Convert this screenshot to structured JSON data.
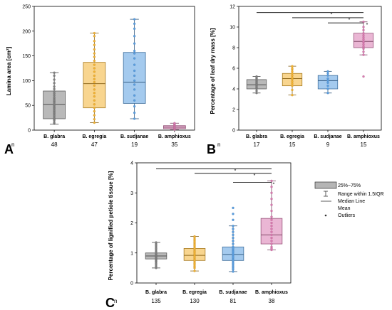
{
  "chart_data": [
    {
      "panel": "A",
      "type": "box",
      "ylabel": "Lamina area [cm²]",
      "ylim": [
        0,
        250
      ],
      "yticks": [
        0,
        50,
        100,
        150,
        200,
        250
      ],
      "categories": [
        "B. glabra",
        "B. egregia",
        "B. sudjanae",
        "B. amphioxus"
      ],
      "n_label": "n",
      "n": [
        "48",
        "47",
        "19",
        "35"
      ],
      "colors": [
        "#808080",
        "#f2b233",
        "#5a9ee0",
        "#d97bb0"
      ],
      "boxes": [
        {
          "whisker_low": 12,
          "q1": 23,
          "median": 52,
          "mean": 52,
          "q3": 79,
          "whisker_high": 116,
          "points": [
            13,
            16,
            20,
            22,
            24,
            27,
            30,
            33,
            35,
            38,
            40,
            43,
            45,
            47,
            50,
            52,
            55,
            58,
            60,
            63,
            66,
            70,
            74,
            78,
            83,
            88,
            95,
            102,
            110,
            116
          ]
        },
        {
          "whisker_low": 15,
          "q1": 45,
          "median": 94,
          "mean": 92,
          "q3": 137,
          "whisker_high": 196,
          "points": [
            15,
            22,
            30,
            38,
            45,
            52,
            60,
            68,
            75,
            82,
            90,
            97,
            103,
            110,
            118,
            125,
            132,
            140,
            148,
            155,
            163,
            172,
            180,
            190,
            196
          ]
        },
        {
          "whisker_low": 23,
          "q1": 54,
          "median": 97,
          "mean": 102,
          "q3": 157,
          "whisker_high": 224,
          "points": [
            23,
            35,
            48,
            60,
            70,
            82,
            92,
            100,
            110,
            120,
            132,
            145,
            155,
            160,
            175,
            190,
            205,
            215,
            224
          ]
        },
        {
          "whisker_low": 1,
          "q1": 3,
          "median": 6,
          "mean": 6,
          "q3": 9,
          "whisker_high": 14,
          "points": [
            1,
            2,
            3,
            4,
            5,
            6,
            7,
            8,
            9,
            10,
            11,
            12,
            13,
            14
          ]
        }
      ]
    },
    {
      "panel": "B",
      "type": "box",
      "ylabel": "Percentage of leaf dry mass [%]",
      "ylim": [
        0,
        12
      ],
      "yticks": [
        0,
        2,
        4,
        6,
        8,
        10,
        12
      ],
      "categories": [
        "B. glabra",
        "B. egregia",
        "B. sudjanae",
        "B. amphioxus"
      ],
      "n_label": "n",
      "n": [
        "17",
        "15",
        "9",
        "15"
      ],
      "colors": [
        "#808080",
        "#f2b233",
        "#5a9ee0",
        "#d97bb0"
      ],
      "boxes": [
        {
          "whisker_low": 3.6,
          "q1": 4.0,
          "median": 4.4,
          "mean": 4.4,
          "q3": 4.9,
          "whisker_high": 5.2,
          "points": [
            3.6,
            3.8,
            4.0,
            4.1,
            4.2,
            4.3,
            4.4,
            4.5,
            4.6,
            4.7,
            4.8,
            4.9,
            5.0,
            5.1,
            5.2
          ]
        },
        {
          "whisker_low": 3.4,
          "q1": 4.3,
          "median": 5.0,
          "mean": 4.9,
          "q3": 5.5,
          "whisker_high": 6.2,
          "points": [
            3.4,
            3.9,
            4.3,
            4.5,
            4.7,
            4.9,
            5.0,
            5.1,
            5.3,
            5.5,
            5.7,
            5.9,
            6.0,
            6.2
          ]
        },
        {
          "whisker_low": 3.6,
          "q1": 4.0,
          "median": 4.8,
          "mean": 4.8,
          "q3": 5.3,
          "whisker_high": 5.7,
          "points": [
            3.6,
            4.0,
            4.3,
            4.6,
            4.8,
            5.0,
            5.3,
            5.5,
            5.7
          ]
        },
        {
          "whisker_low": 7.3,
          "q1": 8.0,
          "median": 8.6,
          "mean": 8.6,
          "q3": 9.4,
          "whisker_high": 10.5,
          "points": [
            5.2,
            7.3,
            7.6,
            7.9,
            8.1,
            8.3,
            8.5,
            8.6,
            8.8,
            9.0,
            9.2,
            9.4,
            9.7,
            10.0,
            10.5
          ]
        }
      ],
      "significance": [
        {
          "from": 0,
          "to": 3,
          "y": 11.4,
          "label": "*"
        },
        {
          "from": 1,
          "to": 3,
          "y": 10.9,
          "label": "*"
        },
        {
          "from": 2,
          "to": 3,
          "y": 10.4,
          "label": "*"
        }
      ]
    },
    {
      "panel": "C",
      "type": "box",
      "ylabel": "Percentage of lignified petiole tissue [%]",
      "ylim": [
        0,
        4
      ],
      "yticks": [
        0,
        1,
        2,
        3,
        4
      ],
      "categories": [
        "B. glabra",
        "B. egregia",
        "B. sudjanae",
        "B. amphioxus"
      ],
      "n_label": "n",
      "n": [
        "135",
        "130",
        "81",
        "38"
      ],
      "colors": [
        "#808080",
        "#f2b233",
        "#5a9ee0",
        "#d97bb0"
      ],
      "boxes": [
        {
          "whisker_low": 0.5,
          "q1": 0.8,
          "median": 0.9,
          "mean": 0.9,
          "q3": 1.0,
          "whisker_high": 1.35,
          "points": [
            0.5,
            0.55,
            0.6,
            0.65,
            0.7,
            0.72,
            0.75,
            0.78,
            0.8,
            0.82,
            0.85,
            0.88,
            0.9,
            0.92,
            0.95,
            0.98,
            1.0,
            1.05,
            1.1,
            1.15,
            1.2,
            1.25,
            1.3,
            1.35
          ]
        },
        {
          "whisker_low": 0.4,
          "q1": 0.75,
          "median": 0.92,
          "mean": 0.95,
          "q3": 1.15,
          "whisker_high": 1.55,
          "points": [
            0.4,
            0.5,
            0.55,
            0.6,
            0.65,
            0.7,
            0.75,
            0.8,
            0.85,
            0.9,
            0.95,
            1.0,
            1.05,
            1.1,
            1.15,
            1.2,
            1.25,
            1.3,
            1.35,
            1.4,
            1.45,
            1.5,
            1.55
          ]
        },
        {
          "whisker_low": 0.38,
          "q1": 0.75,
          "median": 0.95,
          "mean": 1.0,
          "q3": 1.2,
          "whisker_high": 1.9,
          "points": [
            0.38,
            0.45,
            0.5,
            0.55,
            0.6,
            0.65,
            0.7,
            0.75,
            0.8,
            0.85,
            0.9,
            0.95,
            1.0,
            1.05,
            1.1,
            1.15,
            1.2,
            1.3,
            1.4,
            1.5,
            1.6,
            1.7,
            1.8,
            1.9,
            2.1,
            2.3,
            2.5
          ]
        },
        {
          "whisker_low": 1.1,
          "q1": 1.3,
          "median": 1.6,
          "mean": 1.75,
          "q3": 2.15,
          "whisker_high": 3.4,
          "points": [
            1.1,
            1.15,
            1.2,
            1.3,
            1.4,
            1.5,
            1.6,
            1.7,
            1.8,
            1.9,
            2.0,
            2.1,
            2.2,
            2.4,
            2.6,
            2.8,
            3.0,
            3.2,
            3.4
          ]
        }
      ],
      "significance": [
        {
          "from": 0,
          "to": 3,
          "y": 3.8,
          "label": "*"
        },
        {
          "from": 1,
          "to": 3,
          "y": 3.65,
          "label": "*"
        },
        {
          "from": 2,
          "to": 3,
          "y": 3.35,
          "label": "*"
        }
      ]
    }
  ],
  "legend": {
    "items": [
      "25%~75%",
      "Range within 1.5IQR",
      "Median Line",
      "Mean",
      "Outliers"
    ]
  }
}
